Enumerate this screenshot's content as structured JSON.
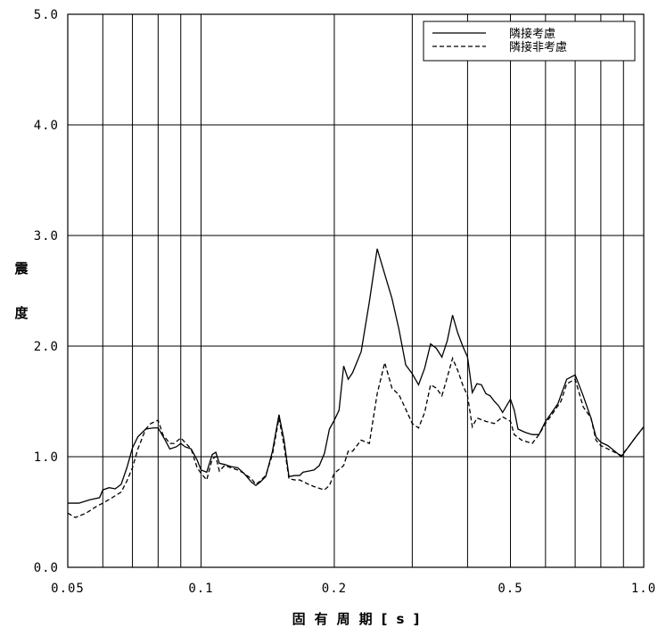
{
  "chart_data": {
    "type": "line",
    "xlabel": "固有周期[s]",
    "ylabel": "震度",
    "xscale": "log",
    "xlim": [
      0.05,
      1.0
    ],
    "ylim": [
      0.0,
      5.0
    ],
    "grid": true,
    "legend_position": "top-right",
    "x_tick_labels": [
      "0.05",
      "0.1",
      "0.2",
      "0.5",
      "1.0"
    ],
    "x_ticks": [
      0.05,
      0.1,
      0.2,
      0.5,
      1.0
    ],
    "x_grid": [
      0.06,
      0.07,
      0.08,
      0.09,
      0.1,
      0.2,
      0.3,
      0.4,
      0.5,
      0.6,
      0.7,
      0.8,
      0.9
    ],
    "y_tick_labels": [
      "0.0",
      "1.0",
      "2.0",
      "3.0",
      "4.0",
      "5.0"
    ],
    "y_ticks": [
      0,
      1,
      2,
      3,
      4,
      5
    ],
    "series": [
      {
        "name": "隣接考慮",
        "style": "solid",
        "color": "#000000",
        "points": [
          [
            0.05,
            0.58
          ],
          [
            0.053,
            0.58
          ],
          [
            0.056,
            0.61
          ],
          [
            0.059,
            0.63
          ],
          [
            0.06,
            0.7
          ],
          [
            0.062,
            0.72
          ],
          [
            0.064,
            0.71
          ],
          [
            0.066,
            0.75
          ],
          [
            0.068,
            0.9
          ],
          [
            0.07,
            1.08
          ],
          [
            0.072,
            1.18
          ],
          [
            0.075,
            1.25
          ],
          [
            0.078,
            1.26
          ],
          [
            0.08,
            1.26
          ],
          [
            0.083,
            1.15
          ],
          [
            0.085,
            1.07
          ],
          [
            0.088,
            1.09
          ],
          [
            0.09,
            1.12
          ],
          [
            0.092,
            1.09
          ],
          [
            0.095,
            1.07
          ],
          [
            0.098,
            0.97
          ],
          [
            0.1,
            0.88
          ],
          [
            0.103,
            0.86
          ],
          [
            0.106,
            1.02
          ],
          [
            0.108,
            1.04
          ],
          [
            0.11,
            0.94
          ],
          [
            0.113,
            0.93
          ],
          [
            0.117,
            0.91
          ],
          [
            0.121,
            0.9
          ],
          [
            0.125,
            0.85
          ],
          [
            0.13,
            0.77
          ],
          [
            0.133,
            0.74
          ],
          [
            0.136,
            0.77
          ],
          [
            0.14,
            0.82
          ],
          [
            0.145,
            1.05
          ],
          [
            0.15,
            1.38
          ],
          [
            0.154,
            1.15
          ],
          [
            0.158,
            0.82
          ],
          [
            0.163,
            0.83
          ],
          [
            0.167,
            0.83
          ],
          [
            0.17,
            0.86
          ],
          [
            0.175,
            0.87
          ],
          [
            0.18,
            0.88
          ],
          [
            0.185,
            0.92
          ],
          [
            0.19,
            1.03
          ],
          [
            0.195,
            1.25
          ],
          [
            0.2,
            1.33
          ],
          [
            0.205,
            1.42
          ],
          [
            0.21,
            1.82
          ],
          [
            0.215,
            1.7
          ],
          [
            0.22,
            1.76
          ],
          [
            0.23,
            1.95
          ],
          [
            0.24,
            2.4
          ],
          [
            0.25,
            2.88
          ],
          [
            0.26,
            2.65
          ],
          [
            0.27,
            2.43
          ],
          [
            0.28,
            2.15
          ],
          [
            0.29,
            1.83
          ],
          [
            0.3,
            1.75
          ],
          [
            0.31,
            1.65
          ],
          [
            0.32,
            1.8
          ],
          [
            0.33,
            2.02
          ],
          [
            0.34,
            1.98
          ],
          [
            0.35,
            1.9
          ],
          [
            0.36,
            2.05
          ],
          [
            0.37,
            2.28
          ],
          [
            0.38,
            2.12
          ],
          [
            0.39,
            2.0
          ],
          [
            0.4,
            1.9
          ],
          [
            0.41,
            1.58
          ],
          [
            0.42,
            1.66
          ],
          [
            0.43,
            1.65
          ],
          [
            0.44,
            1.57
          ],
          [
            0.45,
            1.55
          ],
          [
            0.46,
            1.5
          ],
          [
            0.47,
            1.46
          ],
          [
            0.48,
            1.4
          ],
          [
            0.5,
            1.52
          ],
          [
            0.51,
            1.42
          ],
          [
            0.52,
            1.25
          ],
          [
            0.54,
            1.22
          ],
          [
            0.56,
            1.2
          ],
          [
            0.58,
            1.2
          ],
          [
            0.6,
            1.32
          ],
          [
            0.62,
            1.4
          ],
          [
            0.64,
            1.48
          ],
          [
            0.67,
            1.7
          ],
          [
            0.7,
            1.74
          ],
          [
            0.73,
            1.55
          ],
          [
            0.76,
            1.35
          ],
          [
            0.78,
            1.18
          ],
          [
            0.8,
            1.13
          ],
          [
            0.83,
            1.1
          ],
          [
            0.86,
            1.05
          ],
          [
            0.89,
            1.0
          ],
          [
            0.92,
            1.08
          ],
          [
            0.96,
            1.18
          ],
          [
            1.0,
            1.27
          ]
        ]
      },
      {
        "name": "隣接非考慮",
        "style": "dashed",
        "color": "#000000",
        "points": [
          [
            0.05,
            0.49
          ],
          [
            0.052,
            0.45
          ],
          [
            0.055,
            0.49
          ],
          [
            0.058,
            0.55
          ],
          [
            0.06,
            0.58
          ],
          [
            0.063,
            0.63
          ],
          [
            0.066,
            0.68
          ],
          [
            0.068,
            0.78
          ],
          [
            0.07,
            0.9
          ],
          [
            0.072,
            1.07
          ],
          [
            0.075,
            1.25
          ],
          [
            0.077,
            1.3
          ],
          [
            0.08,
            1.33
          ],
          [
            0.082,
            1.2
          ],
          [
            0.085,
            1.12
          ],
          [
            0.087,
            1.12
          ],
          [
            0.09,
            1.17
          ],
          [
            0.092,
            1.13
          ],
          [
            0.095,
            1.07
          ],
          [
            0.098,
            0.9
          ],
          [
            0.1,
            0.85
          ],
          [
            0.103,
            0.79
          ],
          [
            0.106,
            0.98
          ],
          [
            0.108,
            1.0
          ],
          [
            0.11,
            0.87
          ],
          [
            0.113,
            0.92
          ],
          [
            0.117,
            0.9
          ],
          [
            0.121,
            0.88
          ],
          [
            0.125,
            0.85
          ],
          [
            0.13,
            0.8
          ],
          [
            0.133,
            0.75
          ],
          [
            0.136,
            0.78
          ],
          [
            0.14,
            0.83
          ],
          [
            0.145,
            1.02
          ],
          [
            0.15,
            1.35
          ],
          [
            0.154,
            1.1
          ],
          [
            0.158,
            0.8
          ],
          [
            0.163,
            0.79
          ],
          [
            0.167,
            0.79
          ],
          [
            0.175,
            0.75
          ],
          [
            0.18,
            0.73
          ],
          [
            0.19,
            0.7
          ],
          [
            0.195,
            0.74
          ],
          [
            0.2,
            0.85
          ],
          [
            0.21,
            0.92
          ],
          [
            0.215,
            1.05
          ],
          [
            0.22,
            1.05
          ],
          [
            0.23,
            1.15
          ],
          [
            0.24,
            1.12
          ],
          [
            0.25,
            1.57
          ],
          [
            0.26,
            1.85
          ],
          [
            0.27,
            1.62
          ],
          [
            0.28,
            1.56
          ],
          [
            0.29,
            1.43
          ],
          [
            0.3,
            1.3
          ],
          [
            0.31,
            1.26
          ],
          [
            0.32,
            1.4
          ],
          [
            0.33,
            1.65
          ],
          [
            0.34,
            1.62
          ],
          [
            0.35,
            1.55
          ],
          [
            0.36,
            1.72
          ],
          [
            0.37,
            1.89
          ],
          [
            0.38,
            1.78
          ],
          [
            0.39,
            1.65
          ],
          [
            0.4,
            1.55
          ],
          [
            0.41,
            1.27
          ],
          [
            0.42,
            1.35
          ],
          [
            0.44,
            1.32
          ],
          [
            0.46,
            1.3
          ],
          [
            0.48,
            1.36
          ],
          [
            0.5,
            1.32
          ],
          [
            0.51,
            1.2
          ],
          [
            0.53,
            1.15
          ],
          [
            0.56,
            1.12
          ],
          [
            0.58,
            1.2
          ],
          [
            0.6,
            1.3
          ],
          [
            0.62,
            1.38
          ],
          [
            0.65,
            1.5
          ],
          [
            0.67,
            1.66
          ],
          [
            0.7,
            1.7
          ],
          [
            0.73,
            1.45
          ],
          [
            0.76,
            1.35
          ],
          [
            0.78,
            1.15
          ],
          [
            0.8,
            1.1
          ],
          [
            0.83,
            1.07
          ],
          [
            0.86,
            1.04
          ],
          [
            0.89,
            1.01
          ],
          [
            0.92,
            1.08
          ],
          [
            0.96,
            1.18
          ],
          [
            1.0,
            1.27
          ]
        ]
      }
    ]
  }
}
